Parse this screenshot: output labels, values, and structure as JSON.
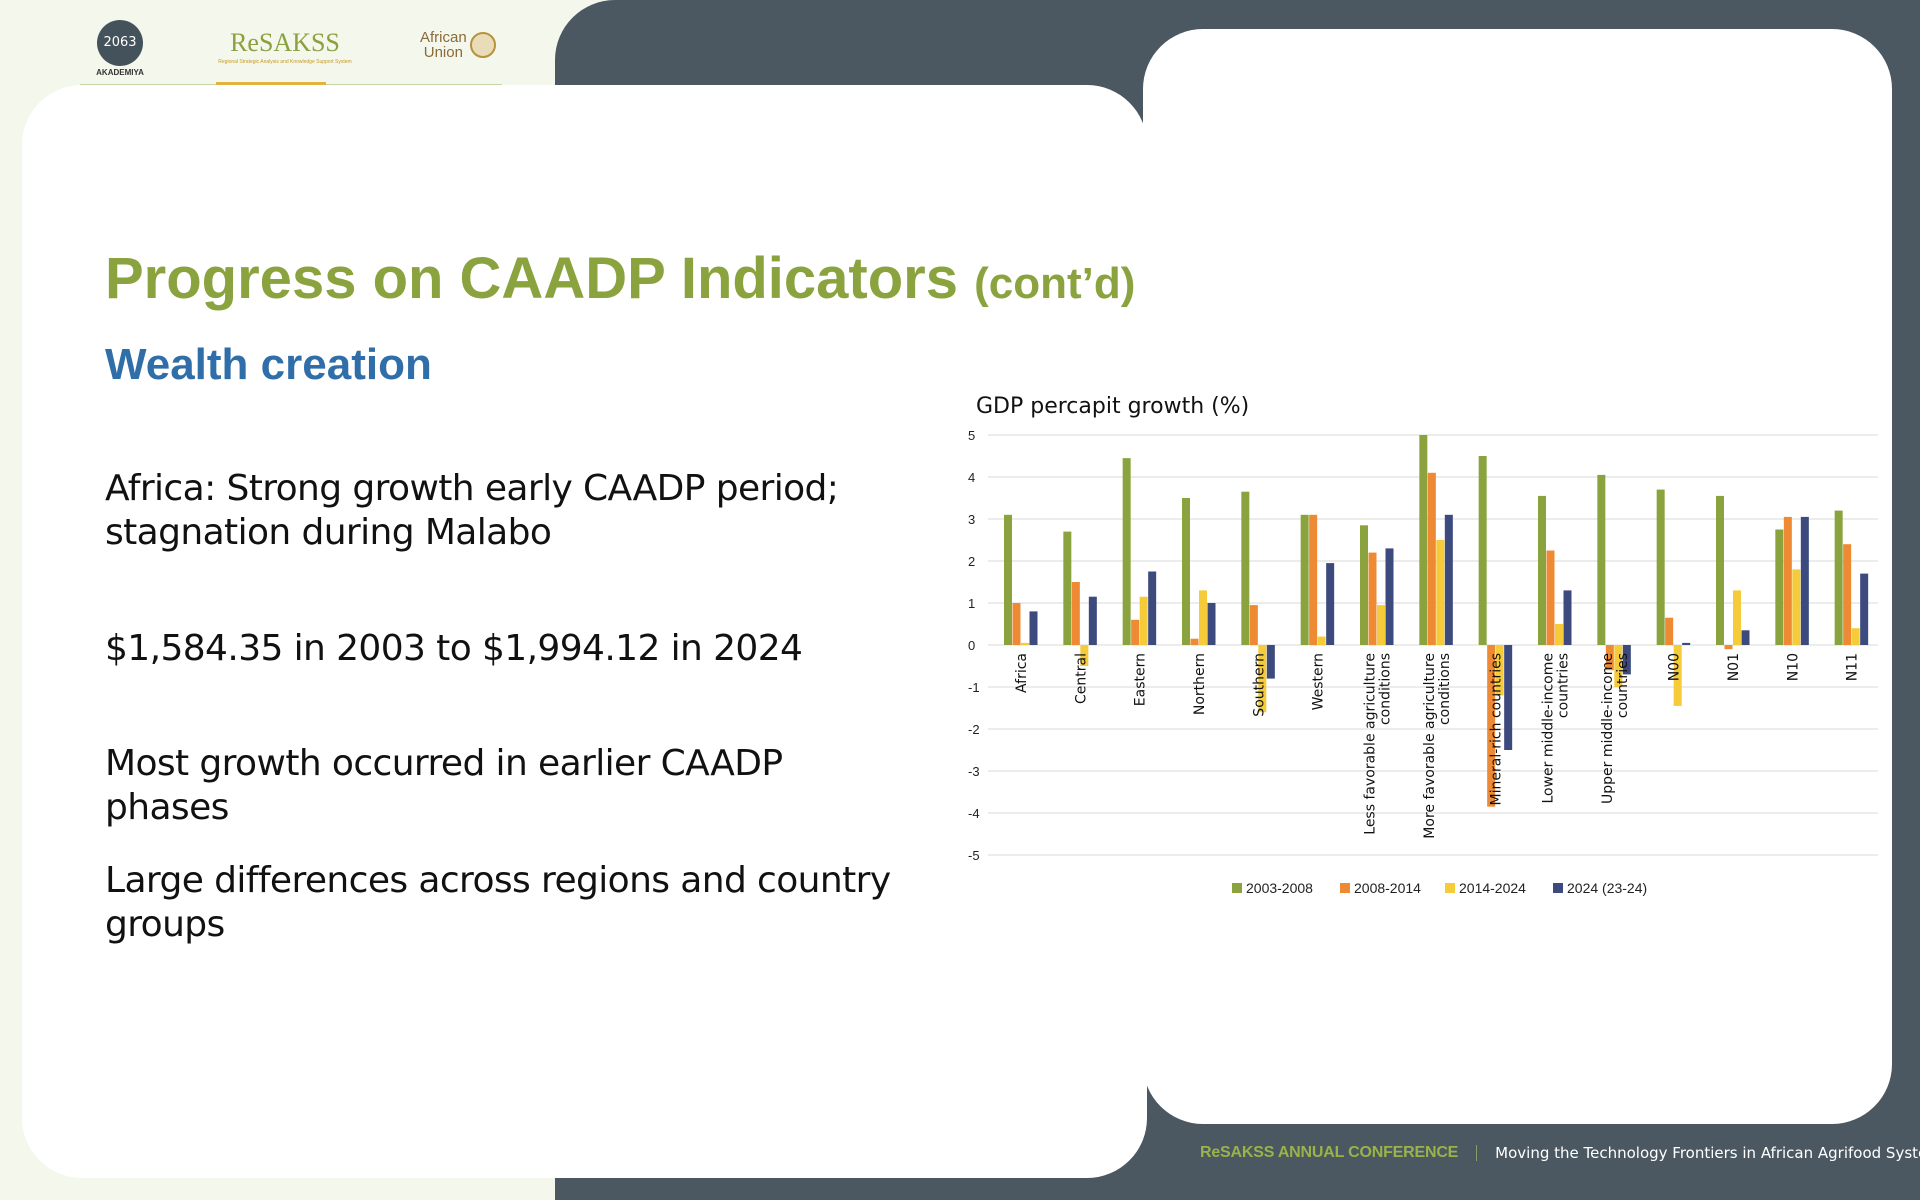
{
  "logos": {
    "akademiya_mark": "2063",
    "akademiya_name": "AKADEMIYA",
    "resakss_name": "ReSAKSS",
    "resakss_sub": "Regional Strategic Analysis and Knowledge Support System",
    "au_line1": "African",
    "au_line2": "Union"
  },
  "slide": {
    "title": "Progress on CAADP Indicators",
    "title_suffix": "(cont’d)",
    "subtitle": "Wealth creation",
    "bullets": [
      "Africa: Strong growth early CAADP period; stagnation during Malabo",
      "$1,584.35 in 2003 to $1,994.12 in 2024",
      "Most growth occurred in earlier CAADP phases",
      "Large differences across regions and country groups"
    ]
  },
  "footer": {
    "conference": "ReSAKSS ANNUAL CONFERENCE",
    "tagline": "Moving the Technology Frontiers in African Agrifood Systems"
  },
  "colors": {
    "s1": "#8aa33e",
    "s2": "#ee8a33",
    "s3": "#f5cb3a",
    "s4": "#3d4a7d"
  },
  "chart_data": {
    "type": "bar",
    "title": "GDP percapit growth (%)",
    "ylabel": "",
    "ylim": [
      -5,
      5
    ],
    "yticks": [
      5,
      4,
      3,
      2,
      1,
      0,
      -1,
      -2,
      -3,
      -4,
      -5
    ],
    "categories": [
      [
        "Africa"
      ],
      [
        "Central"
      ],
      [
        "Eastern"
      ],
      [
        "Northern"
      ],
      [
        "Southern"
      ],
      [
        "Western"
      ],
      [
        "Less favorable agriculture",
        "conditions"
      ],
      [
        "More favorable agriculture",
        "conditions"
      ],
      [
        "Mineral-rich countries"
      ],
      [
        "Lower middle-income",
        "countries"
      ],
      [
        "Upper middle-income",
        "countries"
      ],
      [
        "N00"
      ],
      [
        "N01"
      ],
      [
        "N10"
      ],
      [
        "N11"
      ]
    ],
    "series": [
      {
        "name": "2003-2008",
        "values": [
          3.1,
          2.7,
          4.45,
          3.5,
          3.65,
          3.1,
          2.85,
          5.0,
          4.5,
          3.55,
          4.05,
          3.7,
          3.55,
          2.75,
          3.2
        ]
      },
      {
        "name": "2008-2014",
        "values": [
          1.0,
          1.5,
          0.6,
          0.15,
          0.95,
          3.1,
          2.2,
          4.1,
          -3.85,
          2.25,
          -0.6,
          0.65,
          -0.1,
          3.05,
          2.4
        ]
      },
      {
        "name": "2014-2024",
        "values": [
          0.05,
          -0.5,
          1.15,
          1.3,
          -1.6,
          0.2,
          0.95,
          2.5,
          -1.2,
          0.5,
          -1.0,
          -1.45,
          1.3,
          1.8,
          0.4
        ]
      },
      {
        "name": "2024 (23-24)",
        "values": [
          0.8,
          1.15,
          1.75,
          1.0,
          -0.8,
          1.95,
          2.3,
          3.1,
          -2.5,
          1.3,
          -0.7,
          0.05,
          0.35,
          3.05,
          1.7
        ]
      }
    ]
  }
}
